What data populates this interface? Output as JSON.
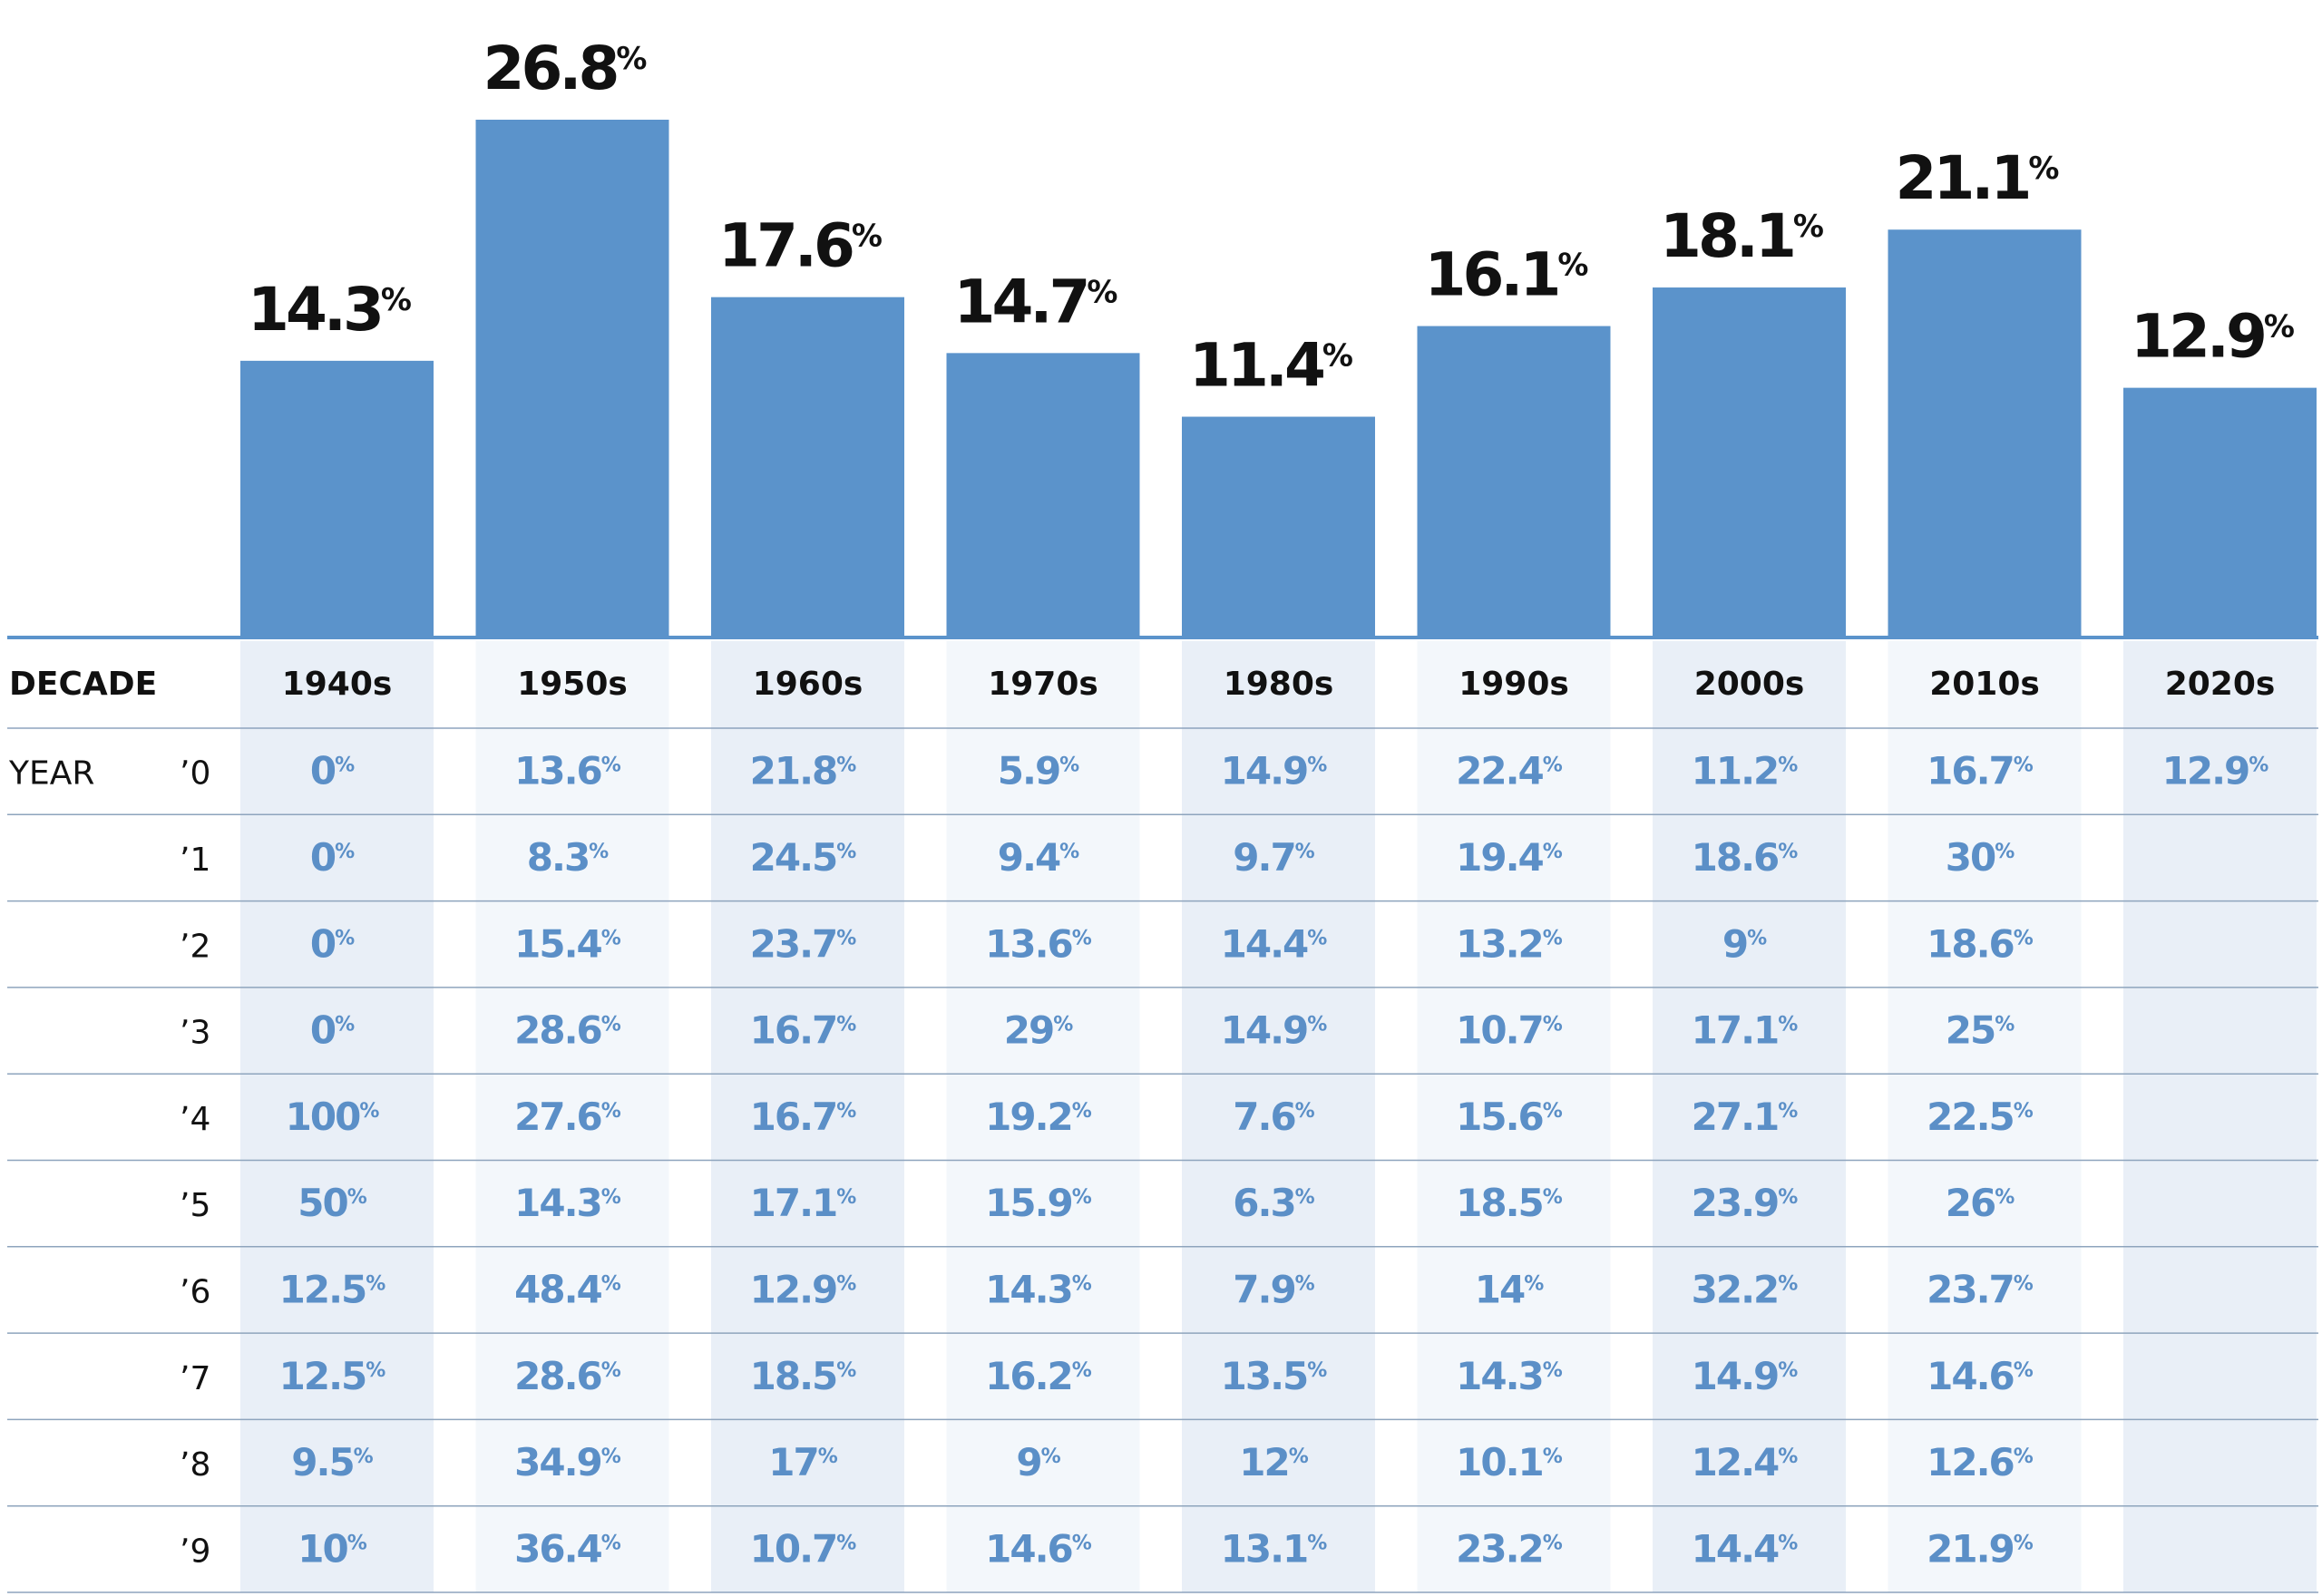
{
  "colors": {
    "bar": "#5b93cb",
    "baseline": "#5b93cb",
    "label": "#111111",
    "cell_text": "#5b8fc7",
    "col_shade_a": "#e9eff7",
    "col_shade_b": "#f3f7fb",
    "row_line": "#8ea4bd"
  },
  "chart_data": {
    "type": "bar",
    "categories": [
      "1940s",
      "1950s",
      "1960s",
      "1970s",
      "1980s",
      "1990s",
      "2000s",
      "2010s",
      "2020s"
    ],
    "values": [
      14.3,
      26.8,
      17.6,
      14.7,
      11.4,
      16.1,
      18.1,
      21.1,
      12.9
    ],
    "value_labels": [
      "14.3",
      "26.8",
      "17.6",
      "14.7",
      "11.4",
      "16.1",
      "18.1",
      "21.1",
      "12.9"
    ],
    "unit": "%",
    "ylim": [
      0,
      26.8
    ],
    "grid": false,
    "legend": "none"
  },
  "table": {
    "decade_header": "DECADE",
    "year_header": "YEAR",
    "decades": [
      "1940s",
      "1950s",
      "1960s",
      "1970s",
      "1980s",
      "1990s",
      "2000s",
      "2010s",
      "2020s"
    ],
    "rows": [
      {
        "year": "’0",
        "values": [
          "0",
          "13.6",
          "21.8",
          "5.9",
          "14.9",
          "22.4",
          "11.2",
          "16.7",
          "12.9"
        ]
      },
      {
        "year": "’1",
        "values": [
          "0",
          "8.3",
          "24.5",
          "9.4",
          "9.7",
          "19.4",
          "18.6",
          "30",
          ""
        ]
      },
      {
        "year": "’2",
        "values": [
          "0",
          "15.4",
          "23.7",
          "13.6",
          "14.4",
          "13.2",
          "9",
          "18.6",
          ""
        ]
      },
      {
        "year": "’3",
        "values": [
          "0",
          "28.6",
          "16.7",
          "29",
          "14.9",
          "10.7",
          "17.1",
          "25",
          ""
        ]
      },
      {
        "year": "’4",
        "values": [
          "100",
          "27.6",
          "16.7",
          "19.2",
          "7.6",
          "15.6",
          "27.1",
          "22.5",
          ""
        ]
      },
      {
        "year": "’5",
        "values": [
          "50",
          "14.3",
          "17.1",
          "15.9",
          "6.3",
          "18.5",
          "23.9",
          "26",
          ""
        ]
      },
      {
        "year": "’6",
        "values": [
          "12.5",
          "48.4",
          "12.9",
          "14.3",
          "7.9",
          "14",
          "32.2",
          "23.7",
          ""
        ]
      },
      {
        "year": "’7",
        "values": [
          "12.5",
          "28.6",
          "18.5",
          "16.2",
          "13.5",
          "14.3",
          "14.9",
          "14.6",
          ""
        ]
      },
      {
        "year": "’8",
        "values": [
          "9.5",
          "34.9",
          "17",
          "9",
          "12",
          "10.1",
          "12.4",
          "12.6",
          ""
        ]
      },
      {
        "year": "’9",
        "values": [
          "10",
          "36.4",
          "10.7",
          "14.6",
          "13.1",
          "23.2",
          "14.4",
          "21.9",
          ""
        ]
      }
    ]
  }
}
